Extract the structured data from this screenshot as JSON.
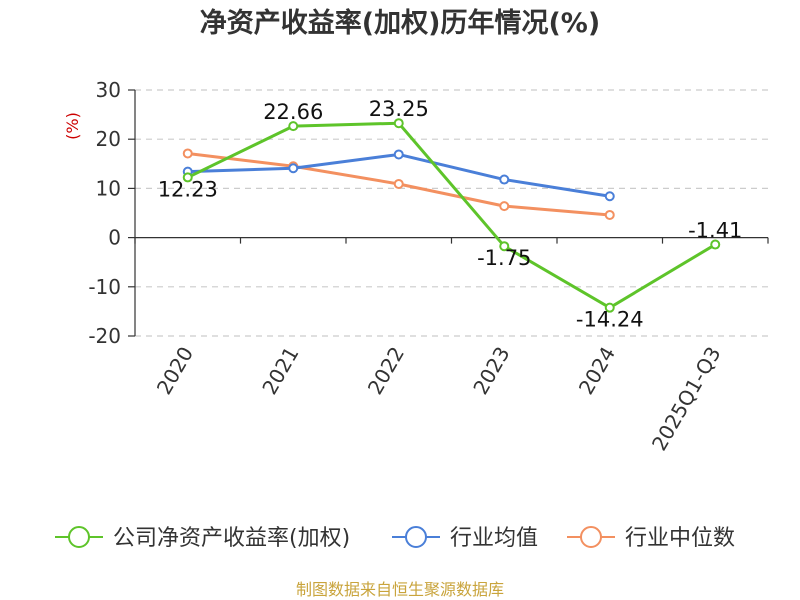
{
  "chart_data": {
    "type": "line",
    "title": "净资产收益率(加权)历年情况(%)",
    "ylabel": "(%)",
    "xlabel": "",
    "categories": [
      "2020",
      "2021",
      "2022",
      "2023",
      "2024",
      "2025Q1-Q3"
    ],
    "ylim": [
      -20,
      30
    ],
    "yticks": [
      30,
      20,
      10,
      0,
      -10,
      -20
    ],
    "ytick_labels": [
      "30",
      "20",
      "10",
      "0",
      "-10",
      "-20"
    ],
    "grid": true,
    "legend_position": "bottom",
    "series": [
      {
        "name": "公司净资产收益率(加权)",
        "color": "#5ec42a",
        "values": [
          12.23,
          22.66,
          23.25,
          -1.75,
          -14.24,
          -1.41
        ],
        "labels": [
          "12.23",
          "22.66",
          "23.25",
          "-1.75",
          "-14.24",
          "-1.41"
        ]
      },
      {
        "name": "行业均值",
        "color": "#4a7fd8",
        "values": [
          13.4,
          14.1,
          16.9,
          11.8,
          8.4,
          null
        ]
      },
      {
        "name": "行业中位数",
        "color": "#f39060",
        "values": [
          17.1,
          14.5,
          10.9,
          6.4,
          4.6,
          null
        ]
      }
    ],
    "source": "制图数据来自恒生聚源数据库"
  }
}
